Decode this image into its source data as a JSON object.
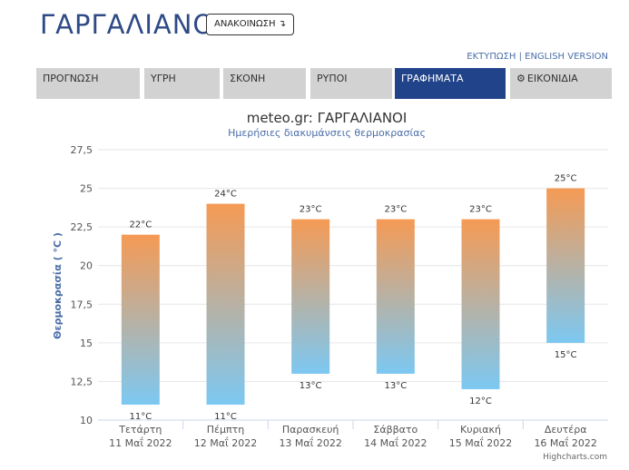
{
  "header": {
    "city": "ΓΑΡΓΑΛΙΑΝΟΙ",
    "announce_label": "ΑΝΑΚΟΙΝΩΣΗ",
    "announce_icon": "arrow-down-icon",
    "print_link": "ΕΚΤΥΠΩΣΗ",
    "separator": " | ",
    "english_link": "ENGLISH VERSION"
  },
  "tabs": [
    {
      "label": "ΠΡΟΓΝΩΣΗ",
      "active": false
    },
    {
      "label": "ΥΓΡΗ",
      "active": false
    },
    {
      "label": "ΣΚΟΝΗ",
      "active": false
    },
    {
      "label": "ΡΥΠΟΙ",
      "active": false
    },
    {
      "label": "ΓΡΑΦΗΜΑΤΑ",
      "active": true
    },
    {
      "label": "ΕΙΚΟΝΙΔΙΑ",
      "active": false,
      "icon": "gear-icon"
    }
  ],
  "colors": {
    "accent": "#214389",
    "bar_top": "#f59a54",
    "bar_bottom": "#7cc8f2",
    "title": "#333333",
    "subtitle": "#4a6ea8"
  },
  "credit": "Highcharts.com",
  "chart_data": {
    "type": "columnrange",
    "title": "meteo.gr: ΓΑΡΓΑΛΙΑΝΟΙ",
    "subtitle": "Ημερήσιες διακυμάνσεις θερμοκρασίας",
    "ylabel": "Θερμοκρασία ( °C )",
    "ylim": [
      10,
      27.5
    ],
    "yticks": [
      "10",
      "12,5",
      "15",
      "17,5",
      "20",
      "22,5",
      "25",
      "27,5"
    ],
    "categories": [
      [
        "Τετάρτη",
        "11 Μαΐ 2022"
      ],
      [
        "Πέμπτη",
        "12 Μαΐ 2022"
      ],
      [
        "Παρασκευή",
        "13 Μαΐ 2022"
      ],
      [
        "Σάββατο",
        "14 Μαΐ 2022"
      ],
      [
        "Κυριακή",
        "15 Μαΐ 2022"
      ],
      [
        "Δευτέρα",
        "16 Μαΐ 2022"
      ]
    ],
    "low": [
      11,
      11,
      13,
      13,
      12,
      15
    ],
    "high": [
      22,
      24,
      23,
      23,
      23,
      25
    ],
    "low_labels": [
      "11°C",
      "11°C",
      "13°C",
      "13°C",
      "12°C",
      "15°C"
    ],
    "high_labels": [
      "22°C",
      "24°C",
      "23°C",
      "23°C",
      "23°C",
      "25°C"
    ],
    "grid": true
  }
}
